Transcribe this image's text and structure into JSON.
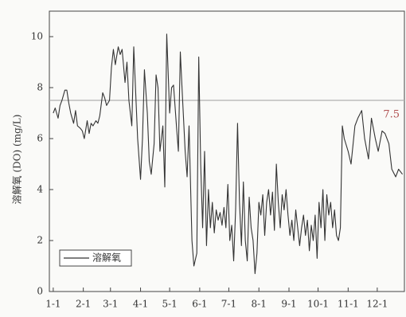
{
  "chart_data": {
    "type": "line",
    "y_label": "溶解氧 (DO) (mg/L)",
    "x": [
      0,
      2,
      5,
      7,
      9,
      12,
      14,
      16,
      18,
      21,
      23,
      25,
      28,
      30,
      32,
      35,
      37,
      39,
      41,
      44,
      46,
      48,
      51,
      53,
      55,
      58,
      60,
      62,
      64,
      67,
      69,
      71,
      74,
      76,
      78,
      81,
      83,
      85,
      87,
      90,
      92,
      94,
      97,
      99,
      101,
      104,
      106,
      108,
      110,
      113,
      115,
      117,
      120,
      122,
      124,
      127,
      129,
      131,
      133,
      136,
      138,
      140,
      143,
      145,
      148,
      150,
      152,
      154,
      156,
      158,
      160,
      162,
      164,
      166,
      168,
      170,
      172,
      174,
      176,
      178,
      180,
      182,
      184,
      186,
      188,
      190,
      192,
      194,
      196,
      198,
      200,
      202,
      204,
      206,
      208,
      210,
      212,
      214,
      216,
      218,
      220,
      222,
      224,
      226,
      228,
      230,
      232,
      234,
      236,
      238,
      240,
      242,
      244,
      246,
      248,
      250,
      252,
      254,
      256,
      258,
      260,
      262,
      264,
      266,
      268,
      270,
      272,
      274,
      276,
      278,
      280,
      282,
      284,
      286,
      288,
      290,
      292,
      294,
      296,
      298,
      300,
      304,
      307,
      311,
      314,
      318,
      321,
      325,
      328,
      332,
      335,
      339,
      342,
      346,
      349,
      353,
      356,
      360
    ],
    "series": [
      {
        "name": "溶解氧",
        "color": "#333333",
        "values": [
          7.0,
          7.2,
          6.8,
          7.3,
          7.5,
          7.9,
          7.9,
          7.4,
          7.0,
          6.6,
          7.1,
          6.5,
          6.4,
          6.3,
          6.0,
          6.7,
          6.2,
          6.6,
          6.5,
          6.7,
          6.6,
          6.9,
          7.8,
          7.6,
          7.3,
          7.5,
          8.8,
          9.5,
          8.9,
          9.6,
          9.3,
          9.5,
          8.2,
          9.0,
          7.5,
          6.5,
          9.6,
          7.8,
          6.0,
          4.4,
          6.0,
          8.7,
          7.0,
          5.1,
          4.6,
          5.8,
          8.5,
          8.0,
          5.5,
          6.5,
          4.1,
          10.1,
          7.0,
          8.0,
          8.1,
          6.5,
          5.5,
          9.4,
          7.8,
          5.5,
          4.5,
          6.5,
          2.0,
          1.0,
          1.5,
          9.2,
          5.0,
          2.5,
          5.5,
          1.8,
          4.0,
          2.5,
          3.5,
          2.3,
          3.2,
          2.8,
          3.1,
          2.6,
          3.3,
          2.5,
          4.2,
          2.0,
          2.6,
          1.2,
          3.2,
          6.6,
          3.5,
          1.8,
          4.3,
          2.0,
          1.2,
          3.7,
          2.5,
          2.0,
          0.7,
          1.5,
          3.5,
          3.0,
          3.8,
          2.2,
          3.5,
          4.0,
          3.0,
          3.9,
          2.4,
          5.0,
          3.5,
          2.5,
          3.8,
          3.2,
          4.0,
          3.0,
          2.2,
          2.8,
          2.0,
          3.2,
          2.5,
          1.8,
          2.5,
          3.0,
          2.2,
          2.8,
          1.6,
          2.6,
          2.0,
          3.0,
          1.3,
          3.5,
          2.5,
          4.0,
          2.0,
          3.8,
          3.0,
          3.5,
          2.5,
          3.2,
          2.2,
          2.0,
          2.5,
          6.5,
          6.0,
          5.5,
          5.0,
          6.5,
          6.8,
          7.1,
          6.0,
          5.2,
          6.8,
          6.0,
          5.5,
          6.3,
          6.2,
          5.8,
          4.8,
          4.5,
          4.8,
          4.6
        ]
      }
    ],
    "hline": 7.5,
    "hline_color": "#b0b0b0",
    "hline_label_color": "#b05050",
    "xlim": [
      -4,
      362
    ],
    "xticks": [
      {
        "value": 0,
        "label": "1-1"
      },
      {
        "value": 31,
        "label": "2-1"
      },
      {
        "value": 59,
        "label": "3-1"
      },
      {
        "value": 90,
        "label": "4-1"
      },
      {
        "value": 120,
        "label": "5-1"
      },
      {
        "value": 151,
        "label": "6-1"
      },
      {
        "value": 181,
        "label": "7-1"
      },
      {
        "value": 212,
        "label": "8-1"
      },
      {
        "value": 243,
        "label": "9-1"
      },
      {
        "value": 273,
        "label": "10-1"
      },
      {
        "value": 304,
        "label": "11-1"
      },
      {
        "value": 334,
        "label": "12-1"
      }
    ],
    "ylim": [
      0,
      11
    ],
    "yticks": [
      0,
      2,
      4,
      6,
      8,
      10
    ]
  }
}
